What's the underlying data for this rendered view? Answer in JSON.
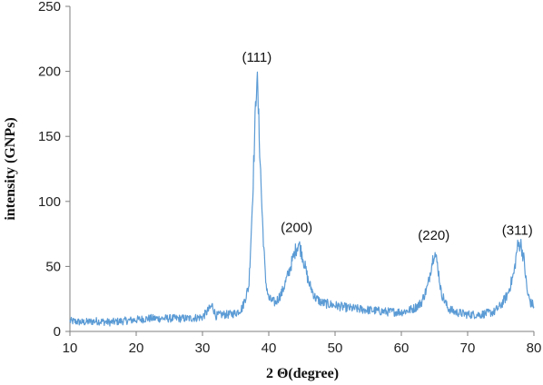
{
  "chart_data": {
    "type": "line",
    "title": "",
    "xlabel": "2 Θ(degree)",
    "ylabel": "intensity (GNPs)",
    "xlim": [
      10,
      80
    ],
    "ylim": [
      0,
      250
    ],
    "x_ticks": [
      10,
      20,
      30,
      40,
      50,
      60,
      70,
      80
    ],
    "y_ticks": [
      0,
      50,
      100,
      150,
      200,
      250
    ],
    "grid": false,
    "legend": "none",
    "line_color": "#5b9bd5",
    "annotations": [
      {
        "text": "(111)",
        "x": 38.2,
        "y": 211
      },
      {
        "text": "(200)",
        "x": 44.2,
        "y": 80
      },
      {
        "text": "(220)",
        "x": 64.9,
        "y": 74
      },
      {
        "text": "(311)",
        "x": 77.5,
        "y": 78
      }
    ],
    "series": [
      {
        "x": [
          10,
          12,
          14,
          16,
          18,
          20,
          22,
          24,
          26,
          28,
          30,
          31.5,
          32,
          33,
          34,
          35,
          36,
          37,
          37.5,
          38,
          38.2,
          38.5,
          39,
          39.5,
          40,
          41,
          42,
          43,
          44,
          44.5,
          45,
          46,
          47,
          48,
          50,
          52,
          54,
          56,
          58,
          60,
          61,
          62,
          63,
          64,
          64.5,
          65,
          65.5,
          66,
          67,
          68,
          70,
          72,
          73,
          74,
          75,
          76,
          77,
          77.5,
          78,
          78.5,
          79,
          79.5,
          80
        ],
        "values": [
          8,
          7,
          8,
          7,
          8,
          9,
          10,
          10,
          10,
          10,
          11,
          20,
          12,
          13,
          13,
          14,
          18,
          35,
          95,
          170,
          200,
          160,
          90,
          40,
          25,
          22,
          30,
          45,
          62,
          68,
          60,
          38,
          26,
          22,
          20,
          18,
          17,
          16,
          15,
          15,
          16,
          18,
          22,
          35,
          50,
          62,
          50,
          30,
          18,
          15,
          13,
          13,
          14,
          15,
          20,
          28,
          45,
          65,
          68,
          55,
          30,
          22,
          20
        ]
      }
    ]
  }
}
